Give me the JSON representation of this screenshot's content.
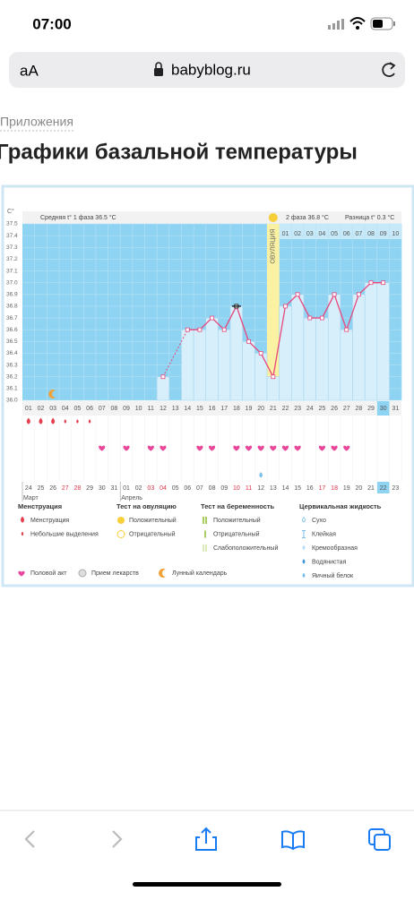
{
  "status_bar": {
    "time": "07:00"
  },
  "address_bar": {
    "text_size": "aA",
    "url": "babyblog.ru"
  },
  "breadcrumb": "Приложения",
  "page_title": "Графики базальной температуры",
  "chart_data": {
    "type": "line",
    "y_unit": "C°",
    "summary": {
      "phase1": "Средняя t° 1 фаза 36.5 °C",
      "phase2": "2 фаза 36.8 °C",
      "diff": "Разница t° 0.3 °C"
    },
    "ovulation_label": "ОВУЛЯЦИЯ",
    "ovulation_day": 21,
    "categories": [
      "01",
      "02",
      "03",
      "04",
      "05",
      "06",
      "07",
      "08",
      "09",
      "10",
      "11",
      "12",
      "13",
      "14",
      "15",
      "16",
      "17",
      "18",
      "19",
      "20",
      "21",
      "22",
      "23",
      "24",
      "25",
      "26",
      "27",
      "28",
      "29",
      "30",
      "31"
    ],
    "phase2_start": 22,
    "phase2_days": [
      "01",
      "02",
      "03",
      "04",
      "05",
      "06",
      "07",
      "08",
      "09",
      "10"
    ],
    "highlight_day": 30,
    "color": "#e8467c",
    "values": [
      null,
      null,
      null,
      null,
      null,
      null,
      null,
      null,
      null,
      null,
      null,
      36.2,
      null,
      36.6,
      36.6,
      36.7,
      36.6,
      36.8,
      36.5,
      36.4,
      36.2,
      36.8,
      36.9,
      36.7,
      36.7,
      36.9,
      36.6,
      36.9,
      37.0,
      37.0,
      null
    ],
    "ylim": [
      36,
      37.5
    ],
    "yticks": [
      {
        "value": 36,
        "label": "36.0"
      },
      36.1,
      36.2,
      36.3,
      36.4,
      36.5,
      36.6,
      36.7,
      36.8,
      36.9,
      {
        "value": 37,
        "label": "37.0"
      },
      37.1,
      37.2,
      37.3,
      37.4,
      37.5
    ],
    "marked_day": 18,
    "moon_days": [
      3
    ],
    "menstruation_days": [
      1,
      2,
      3
    ],
    "spotting_days": [
      4,
      5,
      6
    ],
    "intercourse_days": [
      7,
      9,
      11,
      12,
      15,
      16,
      18,
      19,
      20,
      21,
      22,
      23,
      25,
      26,
      27
    ],
    "egg_white_days": [
      20
    ],
    "dates": [
      "24",
      "25",
      "26",
      "27",
      "28",
      "29",
      "30",
      "31",
      "01",
      "02",
      "03",
      "04",
      "05",
      "06",
      "07",
      "08",
      "09",
      "10",
      "11",
      "12",
      "13",
      "14",
      "15",
      "16",
      "17",
      "18",
      "19",
      "20",
      "21",
      "22",
      "23"
    ],
    "weekend": [
      false,
      false,
      false,
      true,
      true,
      false,
      false,
      false,
      false,
      false,
      true,
      true,
      false,
      false,
      false,
      false,
      false,
      true,
      true,
      false,
      false,
      false,
      false,
      false,
      true,
      true,
      false,
      false,
      false,
      false,
      false
    ],
    "today_index": 29,
    "months": [
      {
        "label": "Март",
        "start": 0
      },
      {
        "label": "Апрель",
        "start": 8
      }
    ],
    "legend": {
      "groups": [
        {
          "title": "Менструация",
          "items": [
            "Менструация",
            "Небольшие выделения"
          ]
        },
        {
          "title": "Тест на овуляцию",
          "items": [
            "Положительный",
            "Отрицательный"
          ]
        },
        {
          "title": "Тест на беременность",
          "items": [
            "Положительный",
            "Отрицательный",
            "Слабоположительный"
          ]
        },
        {
          "title": "Цервикальная жидкость",
          "items": [
            "Сухо",
            "Клейкая",
            "Кремообразная",
            "Водянистая",
            "Яичный белок"
          ]
        }
      ],
      "extra": [
        "Половой акт",
        "Прием лекарств",
        "Лунный календарь"
      ]
    }
  }
}
